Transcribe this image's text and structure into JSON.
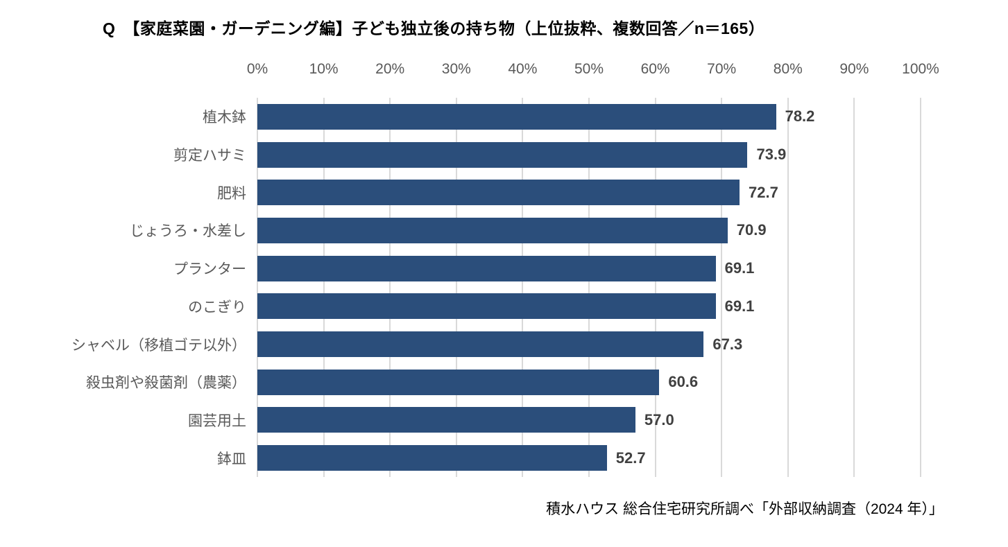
{
  "page": {
    "background": "#ffffff"
  },
  "header": {
    "title": "Q　【家庭菜園・ガーデニング編】子ども独立後の持ち物（上位抜粋、複数回答／n＝165）"
  },
  "chart_data": {
    "type": "bar",
    "orientation": "horizontal",
    "title": "Q　【家庭菜園・ガーデニング編】子ども独立後の持ち物（上位抜粋、複数回答／n＝165）",
    "categories": [
      "植木鉢",
      "剪定ハサミ",
      "肥料",
      "じょうろ・水差し",
      "プランター",
      "のこぎり",
      "シャベル（移植ゴテ以外）",
      "殺虫剤や殺菌剤（農薬）",
      "園芸用土",
      "鉢皿"
    ],
    "values": [
      78.2,
      73.9,
      72.7,
      70.9,
      69.1,
      69.1,
      67.3,
      60.6,
      57.0,
      52.7
    ],
    "value_labels": [
      "78.2",
      "73.9",
      "72.7",
      "70.9",
      "69.1",
      "69.1",
      "67.3",
      "60.6",
      "57.0",
      "52.7"
    ],
    "x_ticks": [
      "0%",
      "10%",
      "20%",
      "30%",
      "40%",
      "50%",
      "60%",
      "70%",
      "80%",
      "90%",
      "100%"
    ],
    "xlim": [
      0,
      100
    ],
    "grid": "vertical-only",
    "legend": "none",
    "colors": {
      "bar": "#2B4E7B",
      "gridline": "#D9D9D9",
      "tick_label": "#595959",
      "category_label": "#595959",
      "value_label": "#404040"
    }
  },
  "footer": {
    "source": "積水ハウス 総合住宅研究所調べ「外部収納調査（2024 年）」"
  }
}
